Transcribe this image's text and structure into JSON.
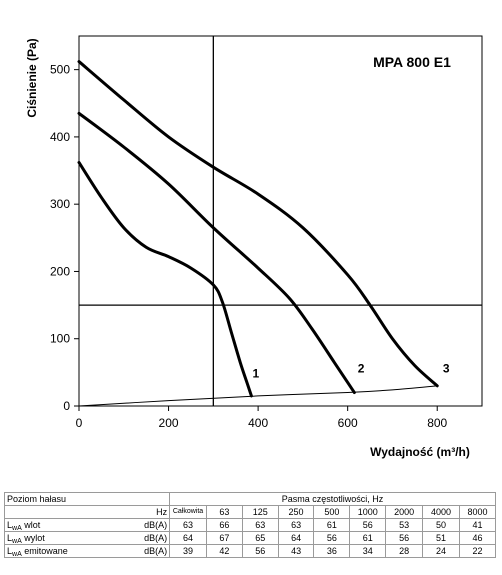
{
  "chart_data": {
    "type": "line",
    "model_label": "MPA 800 E1",
    "xlabel": "Wydajność (m³/h)",
    "ylabel": "Ciśnienie (Pa)",
    "xlim": [
      0,
      900
    ],
    "ylim": [
      0,
      550
    ],
    "x_ticks": [
      0,
      200,
      400,
      600,
      800
    ],
    "y_ticks": [
      0,
      100,
      200,
      300,
      400,
      500
    ],
    "grid": {
      "vertical": [
        300
      ],
      "horizontal": [
        150
      ]
    },
    "series": [
      {
        "name": "1",
        "points": [
          [
            0,
            362
          ],
          [
            50,
            310
          ],
          [
            100,
            265
          ],
          [
            150,
            236
          ],
          [
            200,
            222
          ],
          [
            250,
            205
          ],
          [
            300,
            180
          ],
          [
            320,
            155
          ],
          [
            340,
            110
          ],
          [
            360,
            65
          ],
          [
            375,
            35
          ],
          [
            385,
            15
          ]
        ]
      },
      {
        "name": "2",
        "points": [
          [
            0,
            435
          ],
          [
            100,
            385
          ],
          [
            200,
            330
          ],
          [
            300,
            265
          ],
          [
            400,
            205
          ],
          [
            470,
            160
          ],
          [
            520,
            115
          ],
          [
            570,
            65
          ],
          [
            600,
            35
          ],
          [
            615,
            20
          ]
        ]
      },
      {
        "name": "3",
        "points": [
          [
            0,
            512
          ],
          [
            100,
            455
          ],
          [
            200,
            400
          ],
          [
            300,
            355
          ],
          [
            400,
            315
          ],
          [
            500,
            265
          ],
          [
            600,
            195
          ],
          [
            650,
            150
          ],
          [
            700,
            100
          ],
          [
            750,
            60
          ],
          [
            800,
            30
          ]
        ]
      },
      {
        "name": "",
        "role": "system-curve",
        "points": [
          [
            0,
            0
          ],
          [
            200,
            8
          ],
          [
            400,
            15
          ],
          [
            600,
            20
          ],
          [
            700,
            24
          ],
          [
            800,
            30
          ]
        ]
      }
    ],
    "curve_labels": [
      {
        "text": "1",
        "at": [
          395,
          42
        ]
      },
      {
        "text": "2",
        "at": [
          630,
          50
        ]
      },
      {
        "text": "3",
        "at": [
          820,
          50
        ]
      }
    ]
  },
  "noise_table": {
    "header": {
      "title": "Poziom hałasu",
      "bands_title": "Pasma częstotliwości, Hz",
      "unit_hz": "Hz",
      "total_label": "Całkowita",
      "freqs": [
        "63",
        "125",
        "250",
        "500",
        "1000",
        "2000",
        "4000",
        "8000"
      ]
    },
    "rows": [
      {
        "label_main": "L",
        "label_sub": "wA",
        "label_rest": " wlot",
        "unit": "dB(A)",
        "total": "63",
        "values": [
          "66",
          "63",
          "63",
          "61",
          "56",
          "53",
          "50",
          "41"
        ]
      },
      {
        "label_main": "L",
        "label_sub": "wA",
        "label_rest": " wylot",
        "unit": "dB(A)",
        "total": "64",
        "values": [
          "67",
          "65",
          "64",
          "56",
          "61",
          "56",
          "51",
          "46"
        ]
      },
      {
        "label_main": "L",
        "label_sub": "wA",
        "label_rest": " emitowane",
        "unit": "dB(A)",
        "total": "39",
        "values": [
          "42",
          "56",
          "43",
          "36",
          "34",
          "28",
          "24",
          "22"
        ]
      }
    ]
  }
}
